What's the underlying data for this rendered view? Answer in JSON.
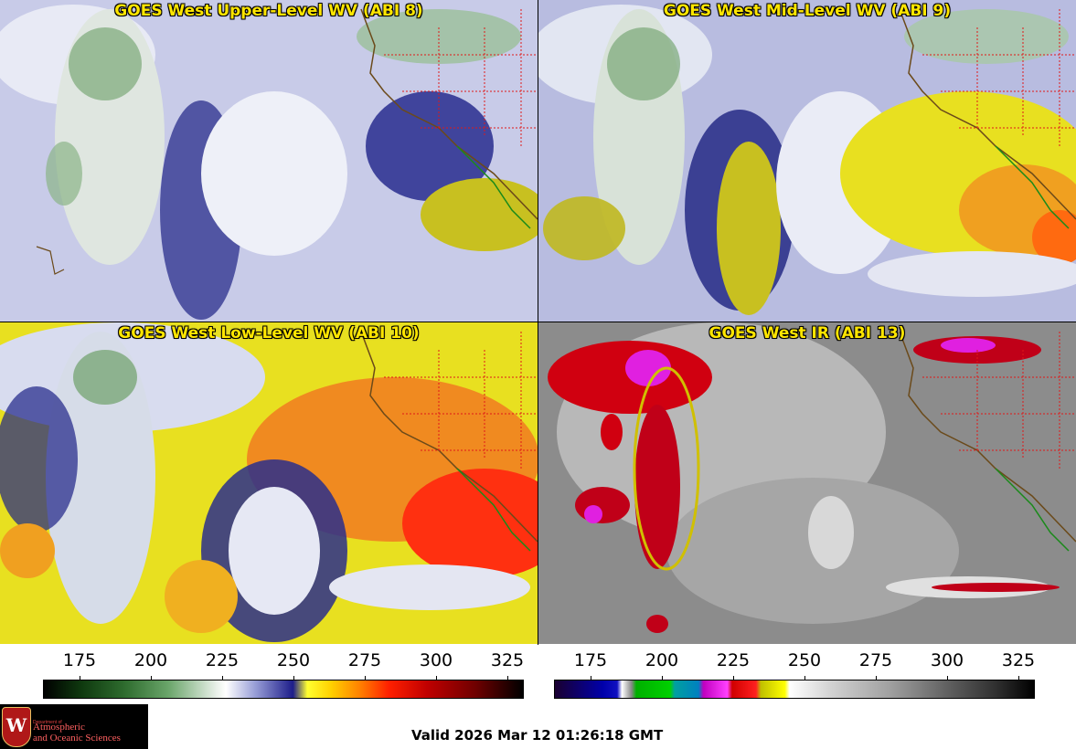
{
  "panels": [
    {
      "title": "GOES West Upper-Level WV (ABI 8)"
    },
    {
      "title": "GOES West Mid-Level WV (ABI 9)"
    },
    {
      "title": "GOES West Low-Level WV (ABI 10)"
    },
    {
      "title": "GOES West IR (ABI 13)"
    }
  ],
  "colorbars": {
    "wv": {
      "ticks": [
        "175",
        "200",
        "225",
        "250",
        "275",
        "300",
        "325"
      ]
    },
    "ir": {
      "ticks": [
        "175",
        "200",
        "225",
        "250",
        "275",
        "300",
        "325"
      ]
    }
  },
  "logo": {
    "dept": "Department of",
    "line1": "Atmospheric",
    "line2": "and Oceanic Sciences",
    "crest": "W"
  },
  "valid_time": "Valid 2026 Mar 12 01:26:18 GMT"
}
